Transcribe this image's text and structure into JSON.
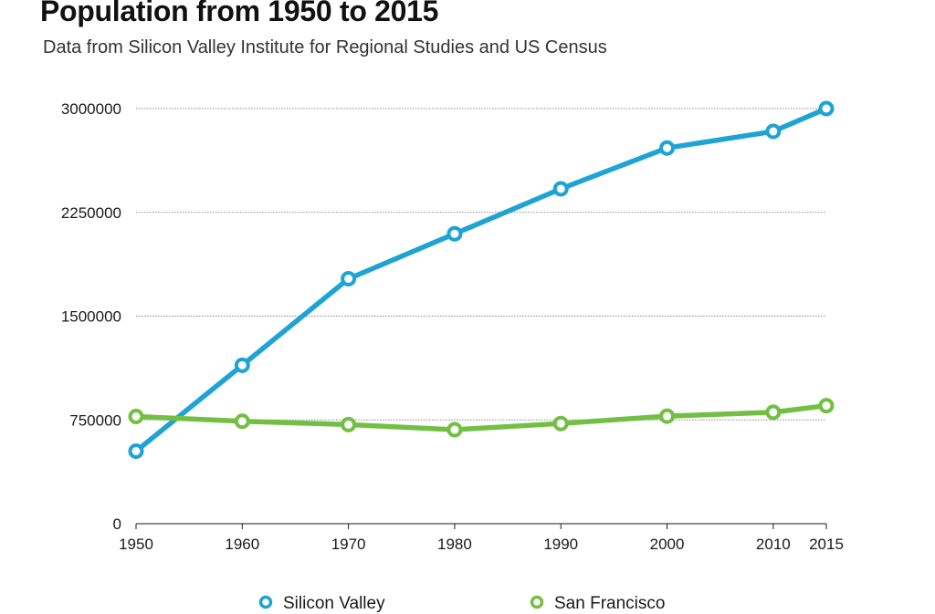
{
  "chart_data": {
    "type": "line",
    "title": "Population from 1950 to 2015",
    "subtitle": "Data from Silicon Valley Institute for Regional Studies and US Census",
    "xlabel": "",
    "ylabel": "",
    "x": [
      1950,
      1960,
      1970,
      1980,
      1990,
      2000,
      2010,
      2015
    ],
    "x_tick_labels": [
      "1950",
      "1960",
      "1970",
      "1980",
      "1990",
      "2000",
      "2010",
      "2015"
    ],
    "y_ticks": [
      0,
      750000,
      1500000,
      2250000,
      3000000
    ],
    "y_tick_labels": [
      "0",
      "750000",
      "1500000",
      "2250000",
      "3000000"
    ],
    "ylim": [
      0,
      3000000
    ],
    "grid": true,
    "legend_position": "bottom",
    "series": [
      {
        "name": "Silicon Valley",
        "color": "#1ea3d4",
        "values": [
          524000,
          1145000,
          1770000,
          2095000,
          2420000,
          2715000,
          2835000,
          3000000
        ]
      },
      {
        "name": "San Francisco",
        "color": "#72bf44",
        "values": [
          775000,
          740000,
          716000,
          679000,
          724000,
          777000,
          805000,
          853000
        ]
      }
    ]
  }
}
